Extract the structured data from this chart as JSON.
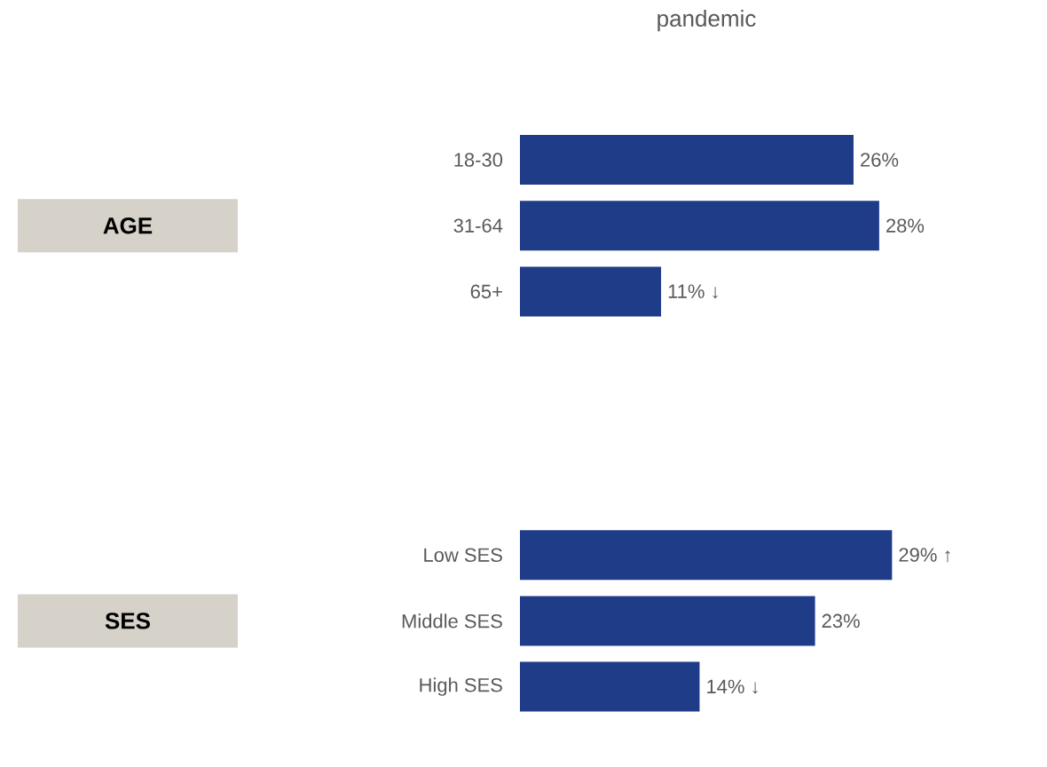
{
  "chart_data": {
    "type": "bar",
    "orientation": "horizontal",
    "title": "pandemic",
    "categories": [
      "18-30",
      "31-64",
      "65+",
      null,
      null,
      null,
      "Low SES",
      "Middle SES",
      "High SES"
    ],
    "values": [
      26,
      28,
      11,
      null,
      null,
      null,
      29,
      23,
      14
    ],
    "value_labels": [
      "26%",
      "28%",
      "11% ↓",
      null,
      null,
      null,
      "29% ↑",
      "23%",
      "14% ↓"
    ],
    "color": "#1f3c88",
    "annotations": [
      "AGE",
      "SES"
    ]
  }
}
